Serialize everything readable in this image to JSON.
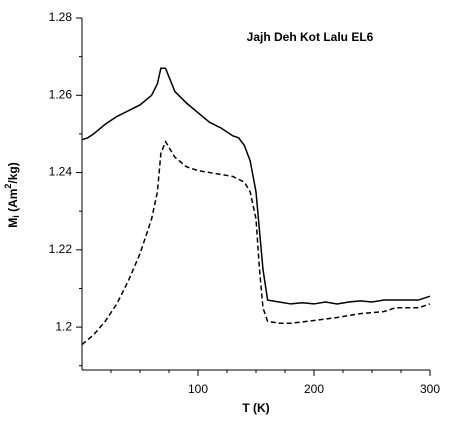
{
  "chart_data": {
    "type": "line",
    "title": "Jajh Deh Kot Lalu EL6",
    "xlabel": "T (K)",
    "ylabel": [
      "M",
      "i",
      " (Am",
      "2",
      "/kg)"
    ],
    "xlim": [
      0,
      300
    ],
    "ylim": [
      1.1889,
      1.28
    ],
    "xticks": [
      100,
      200,
      300
    ],
    "xminorticks": [
      25,
      50,
      75,
      125,
      150,
      175,
      225,
      250,
      275
    ],
    "yticks": [
      1.2,
      1.22,
      1.24,
      1.26,
      1.28
    ],
    "yminorticks": [
      1.19,
      1.21,
      1.23,
      1.25,
      1.27
    ],
    "series": [
      {
        "color": "#000000",
        "dash": false,
        "x": [
          0,
          5,
          10,
          20,
          30,
          40,
          50,
          60,
          65,
          68,
          72,
          76,
          80,
          90,
          100,
          110,
          120,
          130,
          135,
          140,
          145,
          150,
          153,
          156,
          160,
          170,
          180,
          190,
          200,
          210,
          220,
          230,
          240,
          250,
          260,
          270,
          280,
          290,
          300
        ],
        "values": [
          1.2485,
          1.249,
          1.25,
          1.2525,
          1.2545,
          1.256,
          1.2575,
          1.26,
          1.263,
          1.267,
          1.267,
          1.264,
          1.261,
          1.258,
          1.2555,
          1.253,
          1.2515,
          1.2495,
          1.249,
          1.247,
          1.243,
          1.235,
          1.225,
          1.215,
          1.207,
          1.2065,
          1.206,
          1.2063,
          1.206,
          1.2065,
          1.206,
          1.2065,
          1.2068,
          1.2065,
          1.207,
          1.207,
          1.207,
          1.207,
          1.208
        ]
      },
      {
        "color": "#000000",
        "dash": true,
        "x": [
          0,
          10,
          20,
          30,
          40,
          50,
          60,
          65,
          68,
          72,
          75,
          80,
          90,
          100,
          110,
          120,
          130,
          140,
          145,
          150,
          153,
          156,
          160,
          170,
          180,
          200,
          220,
          240,
          260,
          270,
          290,
          300
        ],
        "values": [
          1.1955,
          1.198,
          1.2015,
          1.206,
          1.212,
          1.219,
          1.228,
          1.235,
          1.245,
          1.248,
          1.2465,
          1.244,
          1.2415,
          1.2405,
          1.24,
          1.2395,
          1.239,
          1.2375,
          1.235,
          1.228,
          1.215,
          1.205,
          1.2015,
          1.201,
          1.201,
          1.2017,
          1.2025,
          1.2035,
          1.204,
          1.205,
          1.205,
          1.206
        ]
      }
    ]
  }
}
